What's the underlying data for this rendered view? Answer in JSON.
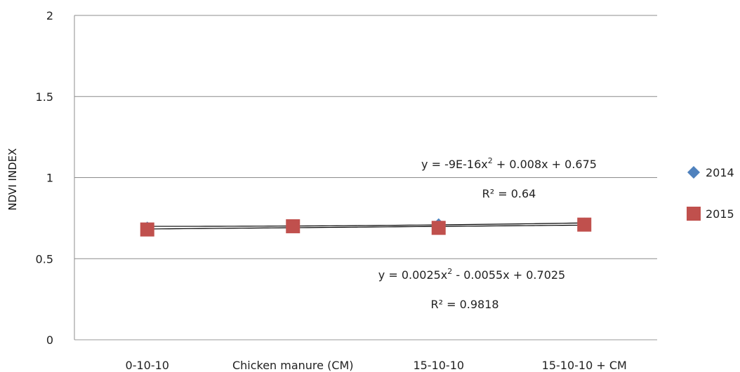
{
  "chart_data": {
    "type": "scatter",
    "categories": [
      "0-10-10",
      "Chicken manure (CM)",
      "15-10-10",
      "15-10-10 + CM"
    ],
    "y_ticks": [
      "0",
      "0.5",
      "1",
      "1.5",
      "2"
    ],
    "ylabel": "NDVI INDEX",
    "xlabel": "",
    "ylim": [
      0,
      2
    ],
    "grid": "horizontal",
    "legend_position": "right",
    "series": [
      {
        "name": "2014",
        "marker": "diamond",
        "color": "#4F81BD",
        "values": [
          0.69,
          0.7,
          0.71,
          0.715
        ]
      },
      {
        "name": "2015",
        "marker": "square",
        "color": "#C0504D",
        "values": [
          0.68,
          0.7,
          0.69,
          0.71
        ]
      }
    ],
    "trendlines": [
      {
        "series": "2014",
        "type": "polynomial",
        "coef": [
          -9e-16,
          0.008,
          0.675
        ],
        "equation": {
          "prefix": "y = -9E-16x",
          "sup": "2",
          "suffix": " + 0.008x + 0.675"
        },
        "r2": "R² = 0.64"
      },
      {
        "series": "2015",
        "type": "polynomial",
        "coef": [
          0.0025,
          -0.0055,
          0.7025
        ],
        "equation": {
          "prefix": "y = 0.0025x",
          "sup": "2",
          "suffix": " - 0.0055x + 0.7025"
        },
        "r2": "R² = 0.9818"
      }
    ]
  }
}
